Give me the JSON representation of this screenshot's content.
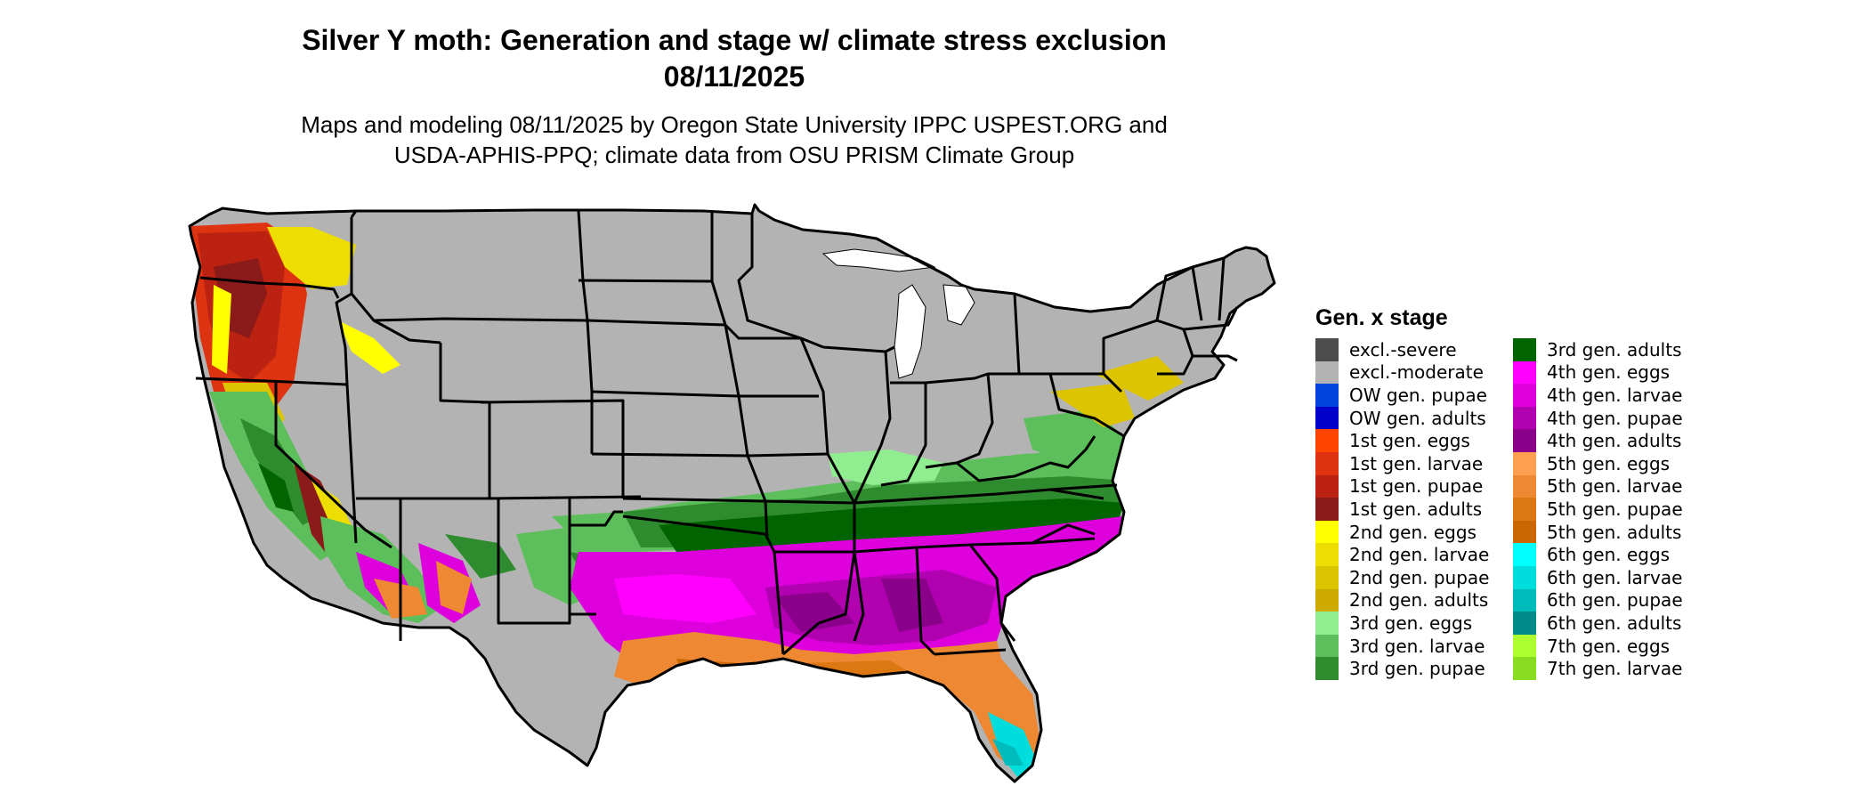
{
  "title_line1": "Silver Y moth: Generation and stage w/ climate stress exclusion",
  "title_line2": "08/11/2025",
  "subtitle_line1": "Maps and modeling 08/11/2025 by Oregon State University IPPC USPEST.ORG and",
  "subtitle_line2": "USDA-APHIS-PPQ; climate data from OSU PRISM Climate Group",
  "legend": {
    "title": "Gen. x stage",
    "items": [
      {
        "label": "excl.-severe",
        "color": "#4d4d4d"
      },
      {
        "label": "excl.-moderate",
        "color": "#b3b3b3"
      },
      {
        "label": "OW gen. pupae",
        "color": "#0044dd"
      },
      {
        "label": "OW gen. adults",
        "color": "#0000cc"
      },
      {
        "label": "1st gen. eggs",
        "color": "#ff4400"
      },
      {
        "label": "1st gen. larvae",
        "color": "#dd3311"
      },
      {
        "label": "1st gen. pupae",
        "color": "#bb2211"
      },
      {
        "label": "1st gen. adults",
        "color": "#8b1a1a"
      },
      {
        "label": "2nd gen. eggs",
        "color": "#ffff00"
      },
      {
        "label": "2nd gen. larvae",
        "color": "#eedd00"
      },
      {
        "label": "2nd gen. pupae",
        "color": "#ddc400"
      },
      {
        "label": "2nd gen. adults",
        "color": "#ccaa00"
      },
      {
        "label": "3rd gen. eggs",
        "color": "#90ee90"
      },
      {
        "label": "3rd gen. larvae",
        "color": "#5cbf5c"
      },
      {
        "label": "3rd gen. pupae",
        "color": "#2e8b2e"
      },
      {
        "label": "3rd gen. adults",
        "color": "#006400"
      },
      {
        "label": "4th gen. eggs",
        "color": "#ff00ff"
      },
      {
        "label": "4th gen. larvae",
        "color": "#dd00dd"
      },
      {
        "label": "4th gen. pupae",
        "color": "#b000b0"
      },
      {
        "label": "4th gen. adults",
        "color": "#8b008b"
      },
      {
        "label": "5th gen. eggs",
        "color": "#ffa050"
      },
      {
        "label": "5th gen. larvae",
        "color": "#ee8833"
      },
      {
        "label": "5th gen. pupae",
        "color": "#dd7711"
      },
      {
        "label": "5th gen. adults",
        "color": "#cc6600"
      },
      {
        "label": "6th gen. eggs",
        "color": "#00ffff"
      },
      {
        "label": "6th gen. larvae",
        "color": "#00dddd"
      },
      {
        "label": "6th gen. pupae",
        "color": "#00bbbb"
      },
      {
        "label": "6th gen. adults",
        "color": "#008b8b"
      },
      {
        "label": "7th gen. eggs",
        "color": "#adff2f"
      },
      {
        "label": "7th gen. larvae",
        "color": "#88dd22"
      }
    ]
  }
}
